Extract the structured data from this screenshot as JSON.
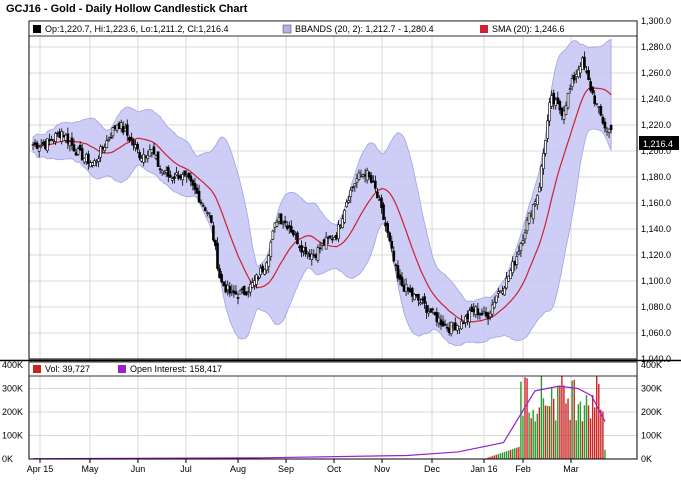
{
  "title": "GCJ16 - Gold - Daily Hollow Candlestick Chart",
  "legend_price": {
    "ohlc": "Op:1,220.7, Hi:1,223.6, Lo:1,211.2, Cl:1,216.4",
    "bbands": "BBANDS (20, 2): 1,212.7 - 1,280.4",
    "sma": "SMA (20): 1,246.6"
  },
  "legend_volume": {
    "vol": "Vol: 39,727",
    "oi": "Open Interest: 158,417"
  },
  "last_price_label": "1,216.4",
  "colors": {
    "bband_fill": "#c8c8f4",
    "sma_line": "#cc2233",
    "oi_line": "#9922cc",
    "vol_up": "#2a9a2a",
    "vol_down": "#cc2222",
    "grid": "#d8d8d8",
    "last_price_bg": "#000000"
  },
  "chart_data": [
    {
      "type": "candlestick",
      "title": "GCJ16 - Gold - Daily Hollow Candlestick Chart",
      "x_tick_labels": [
        "Apr 15",
        "May",
        "Jun",
        "Jul",
        "Aug",
        "Sep",
        "Oct",
        "Nov",
        "Dec",
        "Jan 16",
        "Feb",
        "Mar"
      ],
      "ylim": [
        1040,
        1300
      ],
      "y_tick_labels": [
        "1,300.0",
        "1,280.0",
        "1,260.0",
        "1,240.0",
        "1,220.0",
        "1,200.0",
        "1,180.0",
        "1,160.0",
        "1,140.0",
        "1,120.0",
        "1,100.0",
        "1,080.0",
        "1,060.0",
        "1,040.0"
      ],
      "grid": true,
      "overlays": [
        "BBANDS (20, 2)",
        "SMA (20)"
      ],
      "close_path_points": [
        [
          "Apr 15",
          1205
        ],
        [
          "Apr 15",
          1215
        ],
        [
          "Apr 15",
          1198
        ],
        [
          "May",
          1190
        ],
        [
          "May",
          1206
        ],
        [
          "May",
          1222
        ],
        [
          "May",
          1210
        ],
        [
          "Jun",
          1196
        ],
        [
          "Jun",
          1202
        ],
        [
          "Jun",
          1186
        ],
        [
          "Jun",
          1180
        ],
        [
          "Jun",
          1182
        ],
        [
          "Jul",
          1176
        ],
        [
          "Jul",
          1164
        ],
        [
          "Jul",
          1150
        ],
        [
          "Jul",
          1100
        ],
        [
          "Jul",
          1090
        ],
        [
          "Aug",
          1090
        ],
        [
          "Aug",
          1098
        ],
        [
          "Aug",
          1114
        ],
        [
          "Aug",
          1150
        ],
        [
          "Sep",
          1142
        ],
        [
          "Sep",
          1126
        ],
        [
          "Sep",
          1120
        ],
        [
          "Sep",
          1130
        ],
        [
          "Oct",
          1136
        ],
        [
          "Oct",
          1162
        ],
        [
          "Oct",
          1178
        ],
        [
          "Oct",
          1184
        ],
        [
          "Oct",
          1170
        ],
        [
          "Nov",
          1142
        ],
        [
          "Nov",
          1100
        ],
        [
          "Nov",
          1090
        ],
        [
          "Nov",
          1082
        ],
        [
          "Dec",
          1072
        ],
        [
          "Dec",
          1064
        ],
        [
          "Dec",
          1068
        ],
        [
          "Dec",
          1078
        ],
        [
          "Jan 16",
          1072
        ],
        [
          "Jan 16",
          1090
        ],
        [
          "Jan 16",
          1100
        ],
        [
          "Jan 16",
          1118
        ],
        [
          "Feb",
          1144
        ],
        [
          "Feb",
          1170
        ],
        [
          "Feb",
          1240
        ],
        [
          "Feb",
          1230
        ],
        [
          "Mar",
          1255
        ],
        [
          "Mar",
          1270
        ],
        [
          "Mar",
          1250
        ],
        [
          "Mar",
          1232
        ],
        [
          "Mar",
          1216.4
        ]
      ],
      "last_values": {
        "open": 1220.7,
        "high": 1223.6,
        "low": 1211.2,
        "close": 1216.4,
        "bband_lower": 1212.7,
        "bband_upper": 1280.4,
        "sma20": 1246.6
      }
    },
    {
      "type": "bar",
      "y_tick_labels": [
        "400K",
        "300K",
        "200K",
        "100K",
        "0K"
      ],
      "ylim": [
        0,
        400000
      ],
      "series": [
        {
          "name": "Vol",
          "last": 39727
        },
        {
          "name": "Open Interest",
          "last": 158417
        }
      ],
      "volume_approx": [
        [
          "Jan 16",
          0
        ],
        [
          "Feb",
          60000
        ],
        [
          "Feb",
          190000
        ],
        [
          "Feb",
          270000
        ],
        [
          "Feb",
          360000
        ],
        [
          "Feb",
          300000
        ],
        [
          "Feb",
          250000
        ],
        [
          "Mar",
          210000
        ],
        [
          "Mar",
          320000
        ],
        [
          "Mar",
          260000
        ],
        [
          "Mar",
          340000
        ],
        [
          "Mar",
          39727
        ]
      ],
      "open_interest_approx": [
        [
          "Apr 15",
          1000
        ],
        [
          "Aug",
          5000
        ],
        [
          "Nov",
          15000
        ],
        [
          "Dec",
          30000
        ],
        [
          "Jan 16",
          70000
        ],
        [
          "Feb",
          290000
        ],
        [
          "Feb",
          310000
        ],
        [
          "Mar",
          300000
        ],
        [
          "Mar",
          270000
        ],
        [
          "Mar",
          158417
        ]
      ]
    }
  ]
}
